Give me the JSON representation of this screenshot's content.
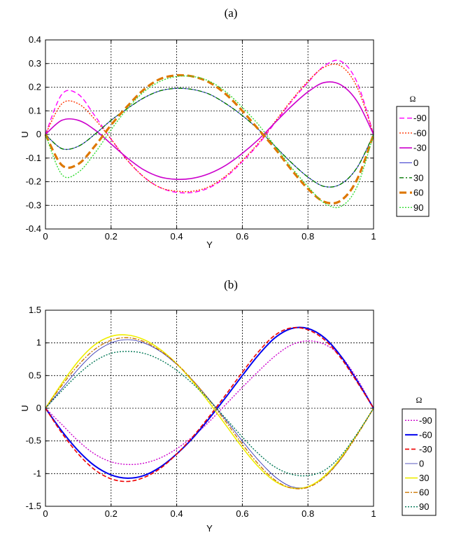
{
  "chart_data": [
    {
      "type": "line",
      "panel_label": "(a)",
      "xlabel": "Y",
      "ylabel": "U",
      "xlim": [
        0,
        1
      ],
      "ylim": [
        -0.4,
        0.4
      ],
      "xticks": [
        "0",
        "0.2",
        "0.4",
        "0.6",
        "0.8",
        "1"
      ],
      "yticks": [
        "0.4",
        "0.3",
        "0.2",
        "0.1",
        "0",
        "-0.1",
        "-0.2",
        "-0.3",
        "-0.4"
      ],
      "grid": true,
      "legend_title": "Ω",
      "legend_position": "right",
      "x": [
        0,
        0.05,
        0.1,
        0.15,
        0.2,
        0.25,
        0.3,
        0.35,
        0.4,
        0.45,
        0.5,
        0.55,
        0.6,
        0.65,
        0.7,
        0.75,
        0.8,
        0.85,
        0.9,
        0.95,
        1
      ],
      "series": [
        {
          "name": "-90",
          "color": "#ff00ff",
          "dash": "7,4",
          "width": 1.4,
          "values": [
            0,
            0.17,
            0.17,
            0.08,
            -0.02,
            -0.11,
            -0.18,
            -0.225,
            -0.245,
            -0.245,
            -0.225,
            -0.18,
            -0.115,
            -0.04,
            0.05,
            0.14,
            0.22,
            0.29,
            0.31,
            0.22,
            0
          ]
        },
        {
          "name": "-60",
          "color": "#ff3300",
          "dash": "2,2",
          "width": 1.4,
          "values": [
            0,
            0.13,
            0.13,
            0.065,
            -0.02,
            -0.11,
            -0.18,
            -0.225,
            -0.24,
            -0.24,
            -0.22,
            -0.175,
            -0.11,
            -0.035,
            0.055,
            0.145,
            0.225,
            0.285,
            0.29,
            0.2,
            0
          ]
        },
        {
          "name": "-30",
          "color": "#cc00cc",
          "dash": "",
          "width": 1.6,
          "values": [
            0,
            0.06,
            0.06,
            0.02,
            -0.04,
            -0.1,
            -0.15,
            -0.18,
            -0.19,
            -0.185,
            -0.165,
            -0.13,
            -0.08,
            -0.02,
            0.05,
            0.12,
            0.18,
            0.22,
            0.21,
            0.14,
            0
          ]
        },
        {
          "name": "0",
          "color": "#3333cc",
          "dash": "",
          "width": 1.0,
          "values": [
            0,
            -0.06,
            -0.05,
            0.0,
            0.06,
            0.11,
            0.155,
            0.185,
            0.195,
            0.19,
            0.17,
            0.13,
            0.08,
            0.02,
            -0.05,
            -0.12,
            -0.18,
            -0.22,
            -0.21,
            -0.14,
            0
          ]
        },
        {
          "name": "30",
          "color": "#007700",
          "dash": "6,3,2,3",
          "width": 1.4,
          "values": [
            0,
            -0.06,
            -0.05,
            0.0,
            0.06,
            0.11,
            0.155,
            0.185,
            0.195,
            0.19,
            0.17,
            0.13,
            0.08,
            0.02,
            -0.05,
            -0.12,
            -0.18,
            -0.22,
            -0.21,
            -0.14,
            0
          ]
        },
        {
          "name": "60",
          "color": "#dd7700",
          "dash": "10,5",
          "width": 3.2,
          "values": [
            0,
            -0.13,
            -0.125,
            -0.05,
            0.04,
            0.12,
            0.19,
            0.235,
            0.25,
            0.245,
            0.22,
            0.17,
            0.1,
            0.02,
            -0.06,
            -0.15,
            -0.23,
            -0.285,
            -0.28,
            -0.19,
            0
          ]
        },
        {
          "name": "90",
          "color": "#33dd33",
          "dash": "2,2",
          "width": 1.4,
          "values": [
            0,
            -0.17,
            -0.16,
            -0.08,
            0.02,
            0.11,
            0.18,
            0.225,
            0.245,
            0.245,
            0.225,
            0.18,
            0.115,
            0.04,
            -0.05,
            -0.14,
            -0.22,
            -0.29,
            -0.305,
            -0.22,
            0
          ]
        }
      ]
    },
    {
      "type": "line",
      "panel_label": "(b)",
      "xlabel": "Y",
      "ylabel": "U",
      "xlim": [
        0,
        1
      ],
      "ylim": [
        -1.5,
        1.5
      ],
      "xticks": [
        "0",
        "0.2",
        "0.4",
        "0.6",
        "0.8",
        "1"
      ],
      "yticks": [
        "1.5",
        "1",
        "0.5",
        "0",
        "-0.5",
        "-1",
        "-1.5"
      ],
      "grid": true,
      "legend_title": "Ω",
      "legend_position": "right",
      "x": [
        0,
        0.05,
        0.1,
        0.15,
        0.2,
        0.25,
        0.3,
        0.35,
        0.4,
        0.45,
        0.5,
        0.55,
        0.6,
        0.65,
        0.7,
        0.75,
        0.8,
        0.85,
        0.9,
        0.95,
        1
      ],
      "series": [
        {
          "name": "-90",
          "color": "#cc00cc",
          "dash": "2,2",
          "width": 1.4,
          "values": [
            0,
            -0.25,
            -0.5,
            -0.7,
            -0.82,
            -0.86,
            -0.84,
            -0.76,
            -0.62,
            -0.43,
            -0.2,
            0.06,
            0.32,
            0.57,
            0.8,
            0.97,
            1.03,
            0.98,
            0.8,
            0.45,
            0
          ]
        },
        {
          "name": "-60",
          "color": "#0000ee",
          "dash": "",
          "width": 2.0,
          "values": [
            0,
            -0.35,
            -0.65,
            -0.88,
            -1.02,
            -1.07,
            -1.03,
            -0.9,
            -0.7,
            -0.45,
            -0.15,
            0.17,
            0.5,
            0.82,
            1.08,
            1.22,
            1.22,
            1.08,
            0.8,
            0.42,
            0
          ]
        },
        {
          "name": "-30",
          "color": "#ee0000",
          "dash": "6,3",
          "width": 1.6,
          "values": [
            0,
            -0.38,
            -0.7,
            -0.94,
            -1.08,
            -1.12,
            -1.06,
            -0.92,
            -0.7,
            -0.43,
            -0.12,
            0.21,
            0.55,
            0.87,
            1.12,
            1.23,
            1.2,
            1.05,
            0.77,
            0.4,
            0
          ]
        },
        {
          "name": "0",
          "color": "#2222aa",
          "dash": "",
          "width": 0.8,
          "values": [
            0,
            0.3,
            0.6,
            0.85,
            1.0,
            1.05,
            1.0,
            0.87,
            0.67,
            0.42,
            0.13,
            -0.18,
            -0.5,
            -0.8,
            -1.05,
            -1.2,
            -1.2,
            -1.05,
            -0.78,
            -0.4,
            0
          ]
        },
        {
          "name": "30",
          "color": "#eeee00",
          "dash": "",
          "width": 1.6,
          "values": [
            0,
            0.38,
            0.72,
            0.97,
            1.1,
            1.12,
            1.05,
            0.9,
            0.68,
            0.4,
            0.08,
            -0.26,
            -0.6,
            -0.9,
            -1.12,
            -1.22,
            -1.2,
            -1.04,
            -0.76,
            -0.4,
            0
          ]
        },
        {
          "name": "60",
          "color": "#cc7700",
          "dash": "6,2,2,2",
          "width": 1.4,
          "values": [
            0,
            0.35,
            0.66,
            0.9,
            1.04,
            1.08,
            1.02,
            0.88,
            0.68,
            0.42,
            0.12,
            -0.21,
            -0.55,
            -0.86,
            -1.1,
            -1.22,
            -1.21,
            -1.06,
            -0.78,
            -0.41,
            0
          ]
        },
        {
          "name": "90",
          "color": "#007755",
          "dash": "2,2",
          "width": 1.4,
          "values": [
            0,
            0.27,
            0.52,
            0.72,
            0.84,
            0.87,
            0.84,
            0.74,
            0.58,
            0.37,
            0.12,
            -0.16,
            -0.44,
            -0.7,
            -0.9,
            -1.01,
            -1.03,
            -0.95,
            -0.73,
            -0.39,
            0
          ]
        }
      ]
    }
  ]
}
